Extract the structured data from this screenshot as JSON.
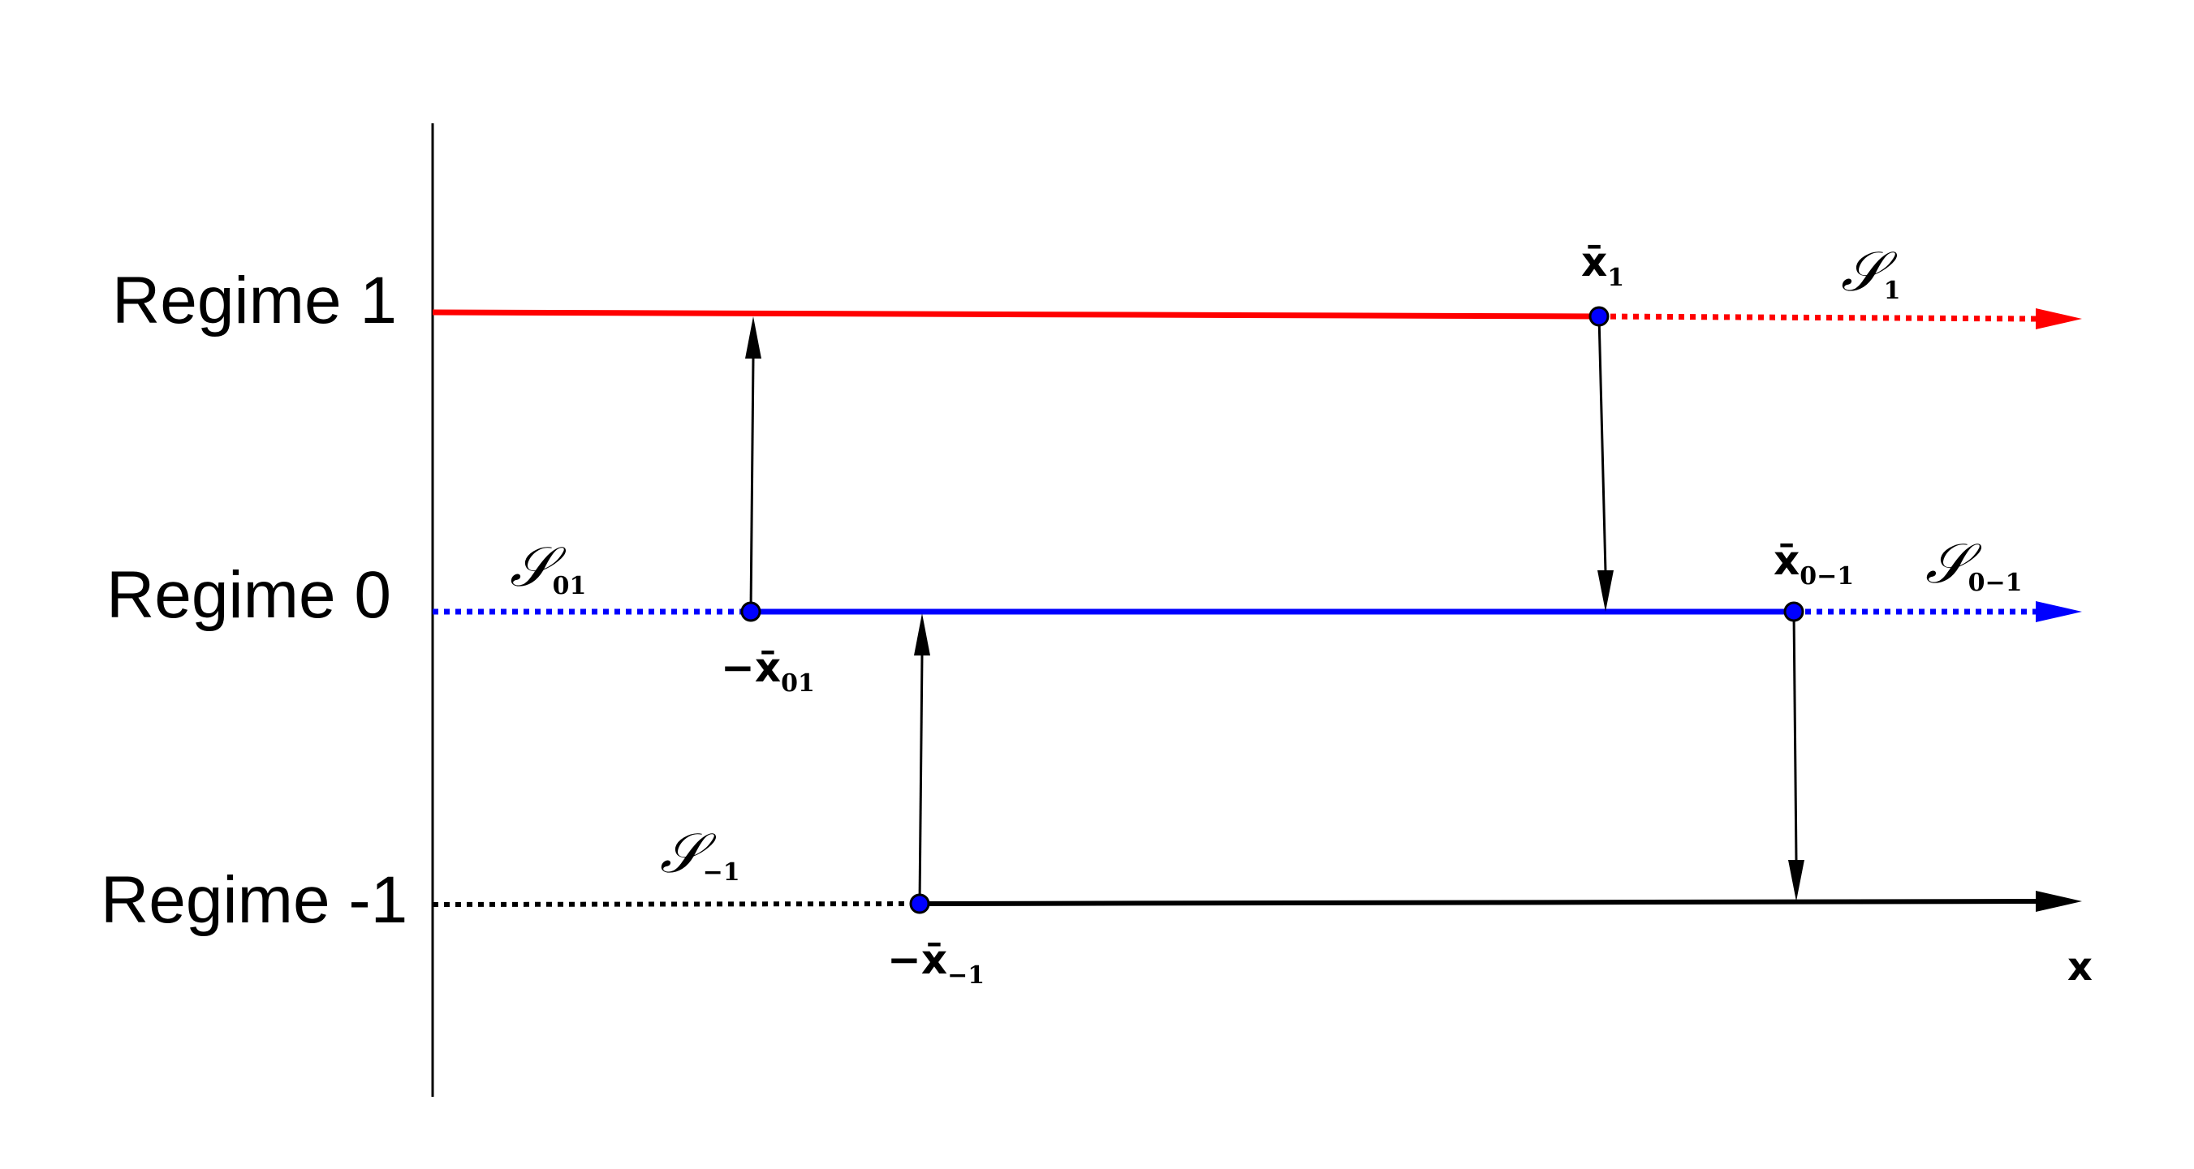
{
  "regimes": {
    "r1": {
      "label": "Regime 1",
      "color": "#ff0000"
    },
    "r0": {
      "label": "Regime 0",
      "color": "#0000ff"
    },
    "rm1": {
      "label": "Regime -1",
      "color": "#000000"
    }
  },
  "axis": {
    "x_label": "x"
  },
  "thresholds": {
    "x1": {
      "symbol": "x̄",
      "sub": "1"
    },
    "x0m1": {
      "symbol": "x̄",
      "sub": "0−1"
    },
    "x01": {
      "symbol": "−x̄",
      "sub": "01"
    },
    "xm1": {
      "symbol": "−x̄",
      "sub": "−1"
    }
  },
  "sets": {
    "s1": {
      "symbol": "𝒮",
      "sub": "1"
    },
    "s0m1": {
      "symbol": "𝒮",
      "sub": "0−1"
    },
    "s01": {
      "symbol": "𝒮",
      "sub": "01"
    },
    "sm1": {
      "symbol": "𝒮",
      "sub": "−1"
    }
  },
  "marker_color": "#0000ff"
}
